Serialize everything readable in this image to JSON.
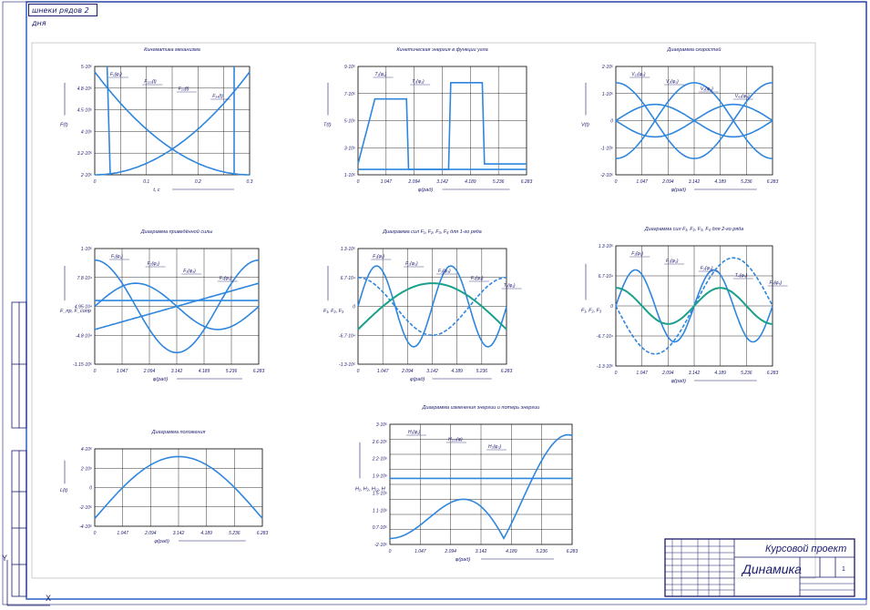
{
  "sheet": {
    "tab_label": "шнеки рядов 2 дня",
    "border_color": "#1a3a8a"
  },
  "colors": {
    "frame": "#1a1a6e",
    "curve": "#2e86de",
    "teal": "#1aa08a",
    "grid": "#000000"
  },
  "panels": [
    {
      "id": "p1",
      "title": "Кинематика механизма",
      "ylabel": "F(t)",
      "xlabel": "t, с",
      "yticks": [
        "5·10⁵",
        "4.8·10⁵",
        "4.5·10⁵",
        "4·10⁵",
        "3.2·10⁵",
        "2·10⁵"
      ],
      "xticks": [
        "0",
        "0.1",
        "0.2",
        "0.3"
      ],
      "callouts": [
        "F₁(φ₁)",
        "F₁₂₃(t)",
        "F₂₃(t)",
        "F₃₄(t)"
      ]
    },
    {
      "id": "p2",
      "title": "Кинетическая энергия в функции угла",
      "ylabel": "T(t)",
      "xlabel": "φ(рад)",
      "yticks": [
        "9·10⁵",
        "7·10⁵",
        "5·10⁵",
        "3·10⁵",
        "1·10⁵"
      ],
      "xticks": [
        "0",
        "1.047",
        "2.094",
        "3.142",
        "4.189",
        "5.236",
        "6.283"
      ],
      "callouts": [
        "T₁(φ₁)",
        "T₂(φ₂)"
      ]
    },
    {
      "id": "p3",
      "title": "Диаграмма скоростей",
      "ylabel": "V(t)",
      "xlabel": "φ(рад)",
      "yticks": [
        "2·10⁵",
        "1·10⁵",
        "0",
        "-1·10⁵",
        "-2·10⁵"
      ],
      "xticks": [
        "0",
        "1.047",
        "2.094",
        "3.142",
        "4.189",
        "5.236",
        "6.283"
      ],
      "callouts": [
        "V₁₂(φ₂)",
        "V₂(φ₂)",
        "V₃(φ₃)",
        "V₄₃(φ₃)"
      ]
    },
    {
      "id": "p4",
      "title": "Диаграмма приведённой силы",
      "ylabel": "F_пр, F_сопр",
      "xlabel": "φ(рад)",
      "yticks": [
        "1·10⁵",
        "7.8·10⁴",
        "4.95·10⁴",
        "-4.8·10⁴",
        "-1.15·10⁵"
      ],
      "xticks": [
        "0",
        "1.047",
        "2.094",
        "3.142",
        "4.189",
        "5.236",
        "6.283"
      ],
      "callouts": [
        "F₁(φ₁)",
        "F₂(φ₂)",
        "F₃(φ₃)",
        "F₄(φ₄)"
      ]
    },
    {
      "id": "p5",
      "title": "Диаграмма сил F₁, F₂, F₃, F₄ для 1-го ряда",
      "ylabel": "F₁, F₂, F₃",
      "xlabel": "φ(рад)",
      "yticks": [
        "1.3·10⁵",
        "6.7·10⁴",
        "0",
        "-6.7·10⁴",
        "-1.3·10⁵"
      ],
      "xticks": [
        "0",
        "1.047",
        "2.094",
        "3.142",
        "4.189",
        "5.236",
        "6.283"
      ],
      "callouts": [
        "F₁(φ₁)",
        "F₂(φ₂)",
        "F₃(φ₃)",
        "F₄(φ₄)",
        "T₁(φ₁)"
      ]
    },
    {
      "id": "p6",
      "title": "Диаграмма сил F₁, F₂, F₃, F₄ для 2-го ряда",
      "ylabel": "F₁, F₂, F₃",
      "xlabel": "φ(рад)",
      "yticks": [
        "1.3·10⁵",
        "6.7·10⁴",
        "0",
        "-6.7·10⁴",
        "-1.3·10⁵"
      ],
      "xticks": [
        "0",
        "1.047",
        "2.094",
        "3.142",
        "4.189",
        "5.236",
        "6.283"
      ],
      "callouts": [
        "F₁(φ₁)",
        "F₂(φ₂)",
        "F₃(φ₃)",
        "T₄(φ₄)",
        "F₄(φ₄)"
      ]
    },
    {
      "id": "p7",
      "title": "Диаграмма положения",
      "ylabel": "L(t)",
      "xlabel": "φ(рад)",
      "yticks": [
        "4·10⁵",
        "2·10⁵",
        "0",
        "-2·10⁵",
        "-4·10⁵"
      ],
      "xticks": [
        "0",
        "1.047",
        "2.094",
        "3.142",
        "4.189",
        "5.236",
        "6.283"
      ],
      "callouts": []
    },
    {
      "id": "p8",
      "title": "Диаграмма изменения энергии и потерь энергии",
      "ylabel": "H₁, H₂, H₁₂, H",
      "xlabel": "φ(рад)",
      "yticks": [
        "3·10⁵",
        "2.6·10⁵",
        "2.2·10⁵",
        "1.9·10⁵",
        "1.5·10⁵",
        "1.1·10⁵",
        "0.7·10⁵",
        "-2·10⁵"
      ],
      "xticks": [
        "0",
        "1.047",
        "2.094",
        "3.142",
        "4.189",
        "5.236",
        "6.283"
      ],
      "callouts": [
        "H₁(φ₁)",
        "H₁₂₃(φ)",
        "H₂(φ₂)"
      ]
    }
  ],
  "title_block": {
    "project": "Курсовой проект",
    "name": "Динамика",
    "sheet": "1",
    "sheets": "1"
  },
  "axes_markers": {
    "x": "X",
    "y": "Y"
  }
}
